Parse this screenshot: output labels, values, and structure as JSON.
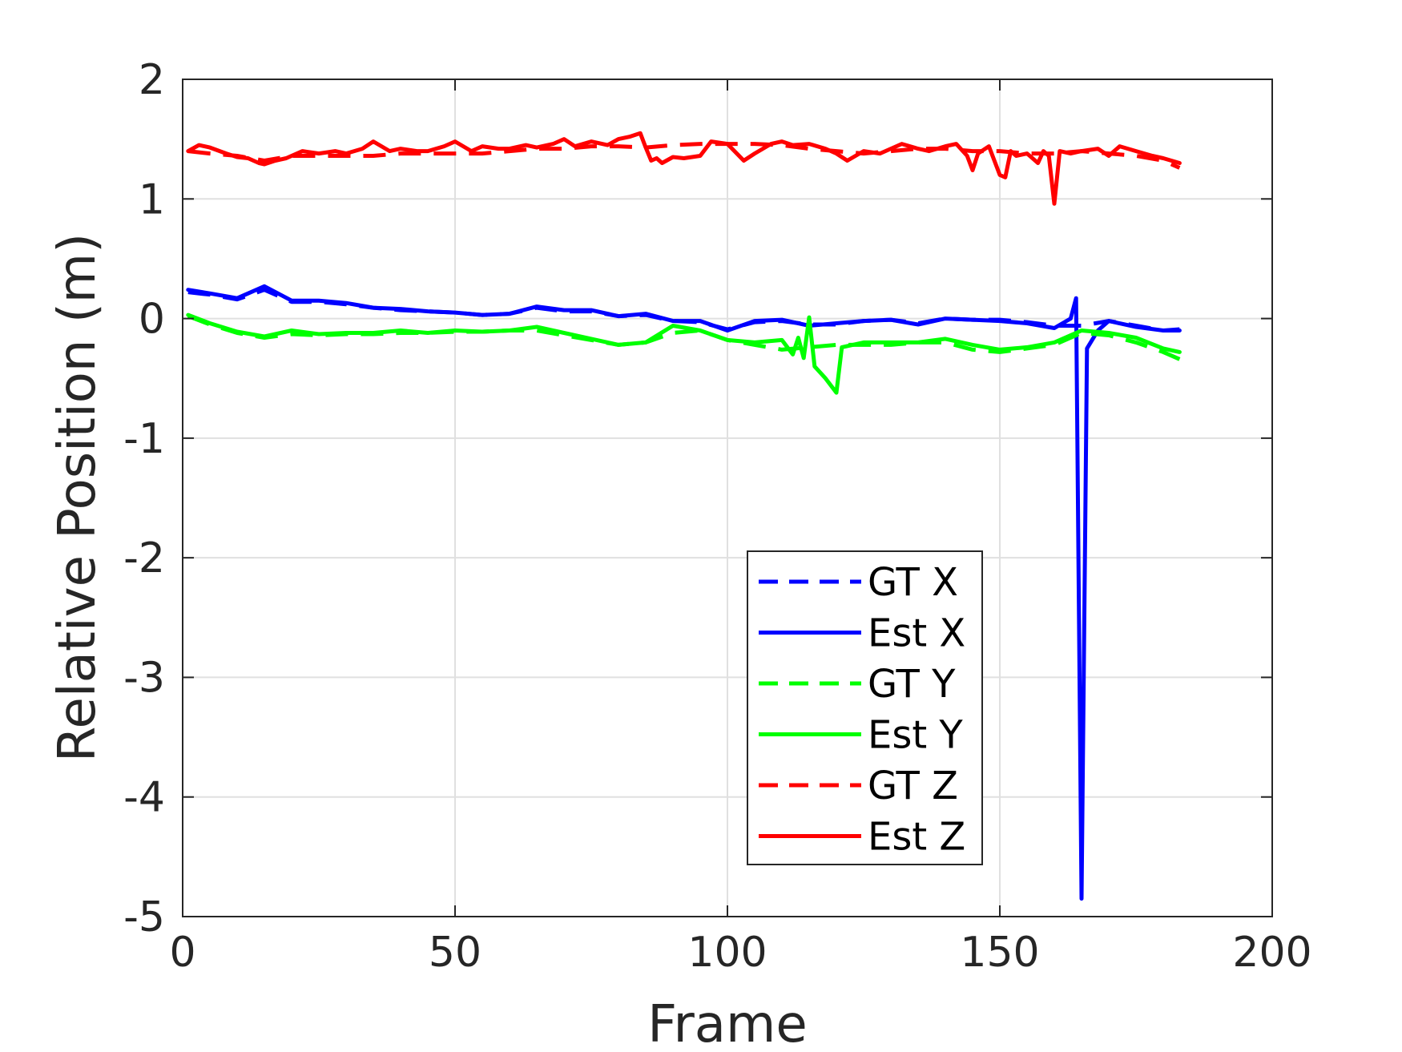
{
  "chart_data": {
    "type": "line",
    "title": "",
    "xlabel": "Frame",
    "ylabel": "Relative Position (m)",
    "xlim": [
      0,
      200
    ],
    "ylim": [
      -5,
      2
    ],
    "xticks": [
      0,
      50,
      100,
      150,
      200
    ],
    "xtick_labels": [
      "0",
      "50",
      "100",
      "150",
      "200"
    ],
    "yticks": [
      2,
      1,
      0,
      -1,
      -2,
      -3,
      -4,
      -5
    ],
    "ytick_labels": [
      "2",
      "1",
      "0",
      "-1",
      "-2",
      "-3",
      "-4",
      "-5"
    ],
    "grid": true,
    "legend_position": "bottom-center",
    "series": [
      {
        "name": "GT X",
        "color": "#0000ff",
        "style": "dashed",
        "x": [
          1,
          5,
          10,
          15,
          20,
          25,
          30,
          35,
          40,
          45,
          50,
          55,
          60,
          65,
          70,
          75,
          80,
          85,
          90,
          95,
          100,
          105,
          110,
          115,
          120,
          125,
          130,
          135,
          140,
          145,
          150,
          155,
          160,
          165,
          170,
          175,
          180,
          183
        ],
        "y": [
          0.22,
          0.2,
          0.16,
          0.24,
          0.14,
          0.14,
          0.12,
          0.09,
          0.07,
          0.06,
          0.05,
          0.03,
          0.04,
          0.09,
          0.06,
          0.06,
          0.02,
          0.03,
          -0.02,
          -0.03,
          -0.09,
          -0.03,
          -0.02,
          -0.05,
          -0.05,
          -0.02,
          -0.01,
          -0.04,
          0.0,
          -0.01,
          -0.01,
          -0.03,
          -0.06,
          -0.06,
          -0.02,
          -0.06,
          -0.1,
          -0.09
        ]
      },
      {
        "name": "Est X",
        "color": "#0000ff",
        "style": "solid",
        "x": [
          1,
          5,
          10,
          15,
          20,
          25,
          30,
          35,
          40,
          45,
          50,
          55,
          60,
          65,
          70,
          75,
          80,
          85,
          90,
          95,
          100,
          105,
          110,
          115,
          120,
          125,
          130,
          135,
          140,
          145,
          150,
          155,
          160,
          163,
          164,
          165,
          166,
          168,
          170,
          175,
          180,
          183
        ],
        "y": [
          0.24,
          0.21,
          0.17,
          0.27,
          0.15,
          0.15,
          0.13,
          0.09,
          0.08,
          0.06,
          0.05,
          0.03,
          0.04,
          0.1,
          0.07,
          0.07,
          0.02,
          0.04,
          -0.02,
          -0.02,
          -0.1,
          -0.02,
          -0.01,
          -0.06,
          -0.04,
          -0.02,
          -0.01,
          -0.05,
          0.0,
          -0.01,
          -0.02,
          -0.04,
          -0.08,
          0.0,
          0.17,
          -4.85,
          -0.25,
          -0.1,
          -0.02,
          -0.07,
          -0.1,
          -0.1
        ]
      },
      {
        "name": "GT Y",
        "color": "#00ff00",
        "style": "dashed",
        "x": [
          1,
          5,
          10,
          15,
          20,
          25,
          30,
          35,
          40,
          45,
          50,
          55,
          60,
          65,
          70,
          75,
          80,
          85,
          90,
          95,
          100,
          105,
          110,
          115,
          120,
          125,
          130,
          135,
          140,
          145,
          150,
          155,
          160,
          165,
          170,
          175,
          180,
          183
        ],
        "y": [
          0.02,
          -0.05,
          -0.12,
          -0.16,
          -0.13,
          -0.14,
          -0.13,
          -0.13,
          -0.12,
          -0.12,
          -0.11,
          -0.11,
          -0.1,
          -0.1,
          -0.14,
          -0.18,
          -0.22,
          -0.2,
          -0.12,
          -0.1,
          -0.18,
          -0.22,
          -0.26,
          -0.24,
          -0.22,
          -0.22,
          -0.22,
          -0.2,
          -0.2,
          -0.26,
          -0.28,
          -0.25,
          -0.22,
          -0.12,
          -0.14,
          -0.2,
          -0.28,
          -0.34
        ]
      },
      {
        "name": "Est Y",
        "color": "#00ff00",
        "style": "solid",
        "x": [
          1,
          5,
          10,
          15,
          20,
          25,
          30,
          35,
          40,
          45,
          50,
          55,
          60,
          65,
          70,
          75,
          80,
          85,
          90,
          95,
          100,
          105,
          110,
          112,
          113,
          114,
          115,
          116,
          118,
          120,
          121,
          125,
          130,
          135,
          140,
          145,
          150,
          155,
          160,
          165,
          170,
          175,
          180,
          183
        ],
        "y": [
          0.03,
          -0.04,
          -0.11,
          -0.15,
          -0.1,
          -0.13,
          -0.12,
          -0.12,
          -0.1,
          -0.12,
          -0.1,
          -0.11,
          -0.1,
          -0.07,
          -0.12,
          -0.17,
          -0.22,
          -0.2,
          -0.06,
          -0.1,
          -0.18,
          -0.2,
          -0.18,
          -0.3,
          -0.16,
          -0.33,
          0.01,
          -0.4,
          -0.5,
          -0.62,
          -0.24,
          -0.2,
          -0.2,
          -0.2,
          -0.17,
          -0.22,
          -0.26,
          -0.24,
          -0.2,
          -0.1,
          -0.12,
          -0.16,
          -0.25,
          -0.28
        ]
      },
      {
        "name": "GT Z",
        "color": "#ff0000",
        "style": "dashed",
        "x": [
          1,
          5,
          10,
          15,
          20,
          25,
          30,
          35,
          40,
          45,
          50,
          55,
          60,
          65,
          70,
          75,
          80,
          85,
          90,
          95,
          100,
          105,
          110,
          115,
          120,
          125,
          130,
          135,
          140,
          145,
          150,
          155,
          160,
          165,
          170,
          175,
          180,
          183
        ],
        "y": [
          1.4,
          1.38,
          1.36,
          1.32,
          1.36,
          1.36,
          1.36,
          1.36,
          1.38,
          1.38,
          1.38,
          1.38,
          1.4,
          1.42,
          1.42,
          1.44,
          1.44,
          1.43,
          1.45,
          1.46,
          1.46,
          1.46,
          1.45,
          1.42,
          1.4,
          1.38,
          1.4,
          1.42,
          1.42,
          1.4,
          1.4,
          1.38,
          1.38,
          1.4,
          1.38,
          1.36,
          1.32,
          1.26
        ]
      },
      {
        "name": "Est Z",
        "color": "#ff0000",
        "style": "solid",
        "x": [
          1,
          3,
          5,
          8,
          10,
          12,
          14,
          15,
          17,
          19,
          20,
          22,
          25,
          28,
          30,
          33,
          35,
          38,
          40,
          43,
          45,
          48,
          50,
          53,
          55,
          58,
          60,
          63,
          65,
          68,
          70,
          72,
          75,
          78,
          80,
          82,
          84,
          85,
          86,
          87,
          88,
          90,
          92,
          95,
          97,
          100,
          103,
          105,
          108,
          110,
          112,
          115,
          118,
          120,
          122,
          125,
          128,
          130,
          132,
          135,
          137,
          140,
          142,
          144,
          145,
          146,
          148,
          150,
          151,
          152,
          153,
          155,
          156,
          157,
          158,
          159,
          160,
          161,
          163,
          165,
          168,
          170,
          172,
          175,
          178,
          180,
          183
        ],
        "y": [
          1.4,
          1.45,
          1.43,
          1.38,
          1.35,
          1.34,
          1.3,
          1.29,
          1.32,
          1.34,
          1.36,
          1.4,
          1.38,
          1.4,
          1.38,
          1.42,
          1.48,
          1.4,
          1.42,
          1.4,
          1.4,
          1.44,
          1.48,
          1.4,
          1.44,
          1.42,
          1.42,
          1.45,
          1.43,
          1.46,
          1.5,
          1.44,
          1.48,
          1.45,
          1.5,
          1.52,
          1.55,
          1.43,
          1.32,
          1.34,
          1.3,
          1.35,
          1.34,
          1.36,
          1.48,
          1.46,
          1.32,
          1.38,
          1.46,
          1.48,
          1.45,
          1.46,
          1.42,
          1.38,
          1.32,
          1.4,
          1.38,
          1.42,
          1.46,
          1.42,
          1.4,
          1.44,
          1.46,
          1.36,
          1.24,
          1.38,
          1.44,
          1.2,
          1.18,
          1.4,
          1.36,
          1.38,
          1.34,
          1.3,
          1.4,
          1.36,
          0.96,
          1.4,
          1.38,
          1.4,
          1.42,
          1.36,
          1.44,
          1.4,
          1.36,
          1.34,
          1.3
        ]
      }
    ]
  }
}
